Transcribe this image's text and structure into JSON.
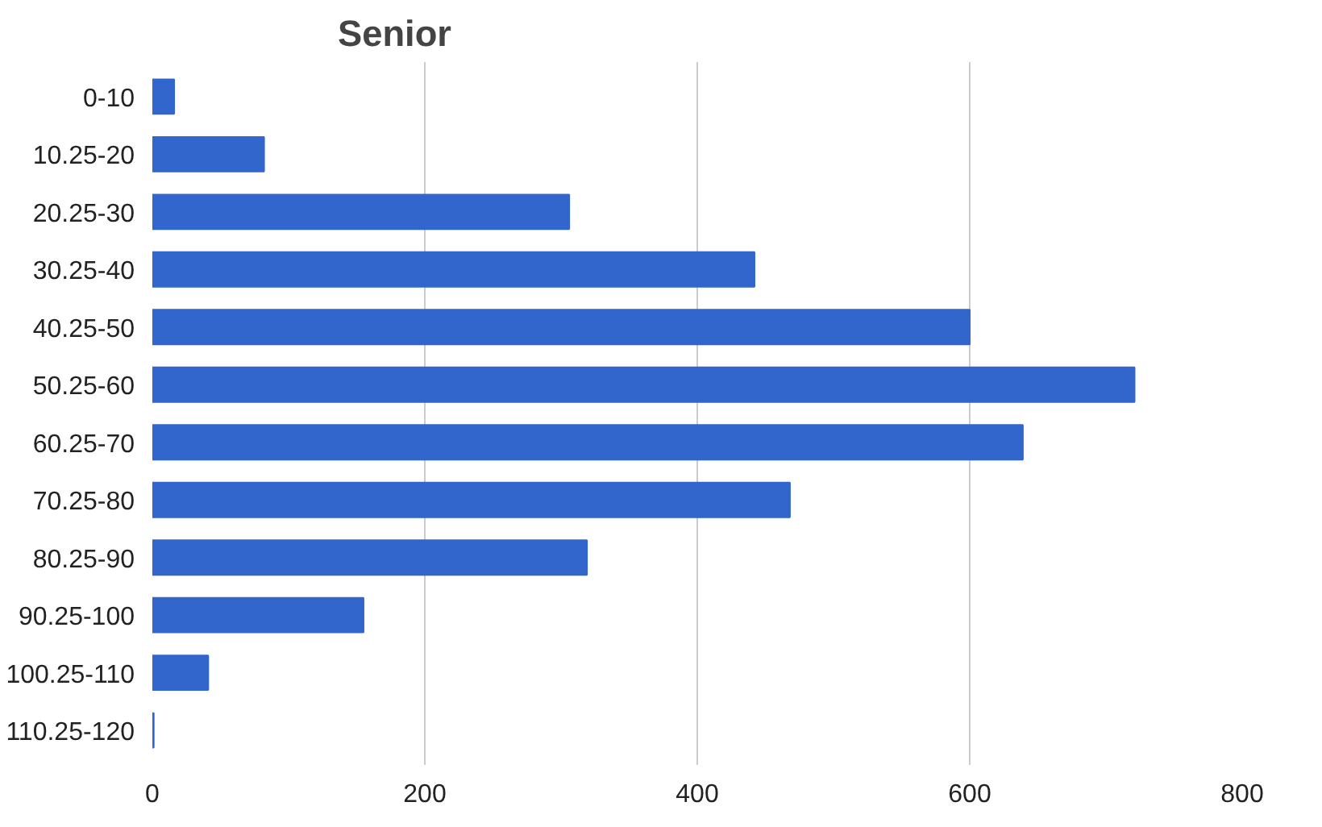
{
  "chart_data": {
    "type": "bar",
    "orientation": "horizontal",
    "title": "Senior",
    "categories": [
      "0-10",
      "10.25-20",
      "20.25-30",
      "30.25-40",
      "40.25-50",
      "50.25-60",
      "60.25-70",
      "70.25-80",
      "80.25-90",
      "90.25-100",
      "100.25-110",
      "110.25-120"
    ],
    "values": [
      16,
      82,
      306,
      442,
      600,
      721,
      639,
      468,
      319,
      155,
      41,
      1
    ],
    "color": "#3366cc",
    "xlim": [
      0,
      800
    ],
    "xticks": [
      0,
      200,
      400,
      600,
      800
    ],
    "grid": "x"
  }
}
